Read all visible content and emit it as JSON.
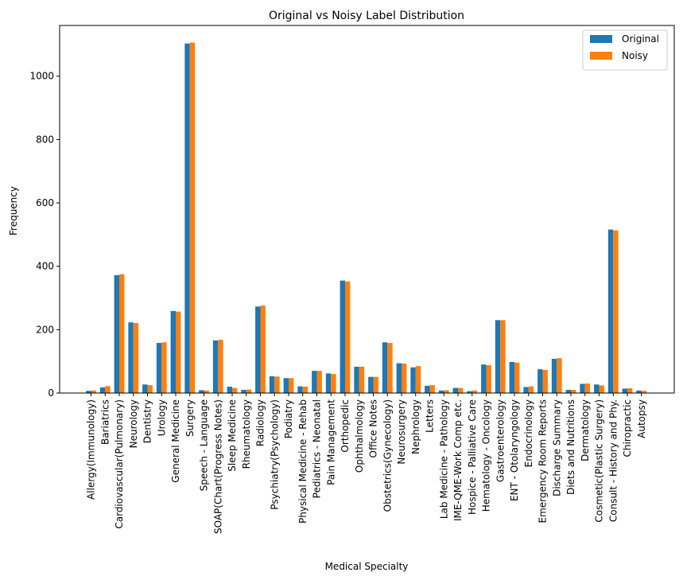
{
  "chart_data": {
    "type": "bar",
    "title": "Original vs Noisy Label Distribution",
    "xlabel": "Medical Specialty",
    "ylabel": "Frequency",
    "ylim": [
      0,
      1160
    ],
    "yticks": [
      0,
      200,
      400,
      600,
      800,
      1000
    ],
    "grid": false,
    "legend_position": "top-right",
    "categories": [
      "Allergy(Immunology)",
      "Bariatrics",
      "Cardiovascular(Pulmonary)",
      "Neurology",
      "Dentistry",
      "Urology",
      "General Medicine",
      "Surgery",
      "Speech - Language",
      "SOAP(Chart(Progress Notes)",
      "Sleep Medicine",
      "Rheumatology",
      "Radiology",
      "Psychiatry(Psychology)",
      "Podiatry",
      "Physical Medicine - Rehab",
      "Pediatrics - Neonatal",
      "Pain Management",
      "Orthopedic",
      "Ophthalmology",
      "Office Notes",
      "Obstetrics(Gynecology)",
      "Neurosurgery",
      "Nephrology",
      "Letters",
      "Lab Medicine - Pathology",
      "IME-QME-Work Comp etc.",
      "Hospice - Palliative Care",
      "Hematology - Oncology",
      "Gastroenterology",
      "ENT - Otolaryngology",
      "Endocrinology",
      "Emergency Room Reports",
      "Discharge Summary",
      "Diets and Nutritions",
      "Dermatology",
      "Cosmetic(Plastic Surgery)",
      "Consult - History and Phy.",
      "Chiropractic",
      "Autopsy"
    ],
    "series": [
      {
        "name": "Original",
        "color": "#1f77b4",
        "values": [
          7,
          18,
          372,
          223,
          27,
          158,
          259,
          1103,
          9,
          166,
          20,
          10,
          273,
          53,
          47,
          21,
          70,
          62,
          355,
          83,
          51,
          160,
          94,
          81,
          23,
          8,
          16,
          6,
          90,
          230,
          98,
          19,
          75,
          108,
          10,
          29,
          27,
          516,
          14,
          8
        ]
      },
      {
        "name": "Noisy",
        "color": "#ff7f0e",
        "values": [
          8,
          22,
          375,
          221,
          25,
          160,
          257,
          1106,
          8,
          168,
          16,
          11,
          276,
          52,
          47,
          20,
          70,
          60,
          352,
          83,
          51,
          158,
          93,
          85,
          25,
          9,
          16,
          8,
          88,
          230,
          96,
          21,
          73,
          110,
          10,
          30,
          24,
          513,
          15,
          7
        ]
      }
    ]
  }
}
